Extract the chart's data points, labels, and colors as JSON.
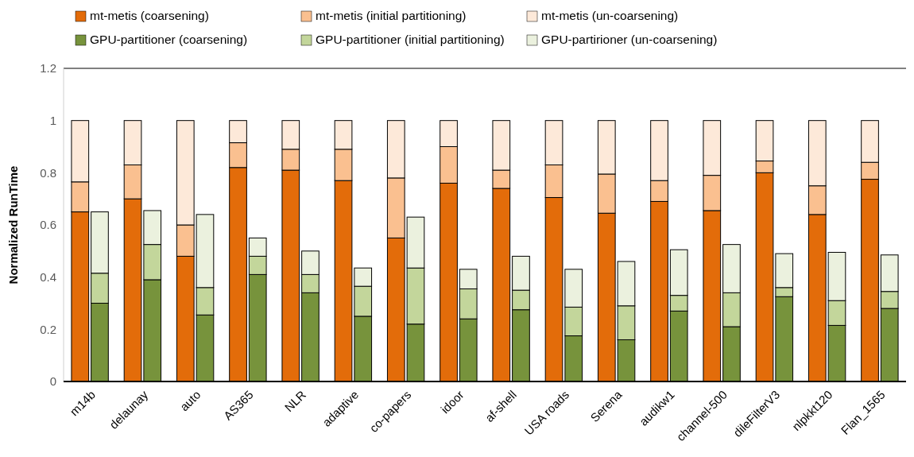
{
  "chart_data": {
    "type": "bar",
    "stacked": true,
    "ylabel": "Normalized RunTime",
    "ylim": [
      0,
      1.2
    ],
    "yticks": [
      0,
      0.2,
      0.4,
      0.6,
      0.8,
      1,
      1.2
    ],
    "grid": false,
    "legend": "top",
    "categories": [
      "m14b",
      null,
      "delaunay",
      null,
      "auto",
      null,
      "AS365",
      null,
      "NLR",
      null,
      "adaptive",
      null,
      "co-papers",
      null,
      "idoor",
      null,
      "af-shell",
      null,
      "USA roads",
      null,
      "Serena",
      null,
      "audikw1",
      null,
      "channel-500",
      null,
      "dileFilterV3",
      null,
      "nlpkkt120",
      null,
      "Flan_1565",
      null
    ],
    "series": [
      {
        "name": "mt-metis (coarsening)",
        "color": "#e36c0a",
        "values": [
          0.65,
          null,
          0.7,
          null,
          0.48,
          null,
          0.82,
          null,
          0.81,
          null,
          0.77,
          null,
          0.55,
          null,
          0.76,
          null,
          0.74,
          null,
          0.705,
          null,
          0.645,
          null,
          0.69,
          null,
          0.655,
          null,
          0.8,
          null,
          0.64,
          null,
          0.775,
          null
        ]
      },
      {
        "name": "mt-metis (initial partitioning)",
        "color": "#fac090",
        "values": [
          0.115,
          null,
          0.13,
          null,
          0.12,
          null,
          0.095,
          null,
          0.08,
          null,
          0.12,
          null,
          0.23,
          null,
          0.14,
          null,
          0.07,
          null,
          0.125,
          null,
          0.15,
          null,
          0.08,
          null,
          0.135,
          null,
          0.045,
          null,
          0.11,
          null,
          0.065,
          null
        ]
      },
      {
        "name": "mt-metis (un-coarsening)",
        "color": "#fde9d9",
        "values": [
          0.235,
          null,
          0.17,
          null,
          0.4,
          null,
          0.085,
          null,
          0.11,
          null,
          0.11,
          null,
          0.22,
          null,
          0.1,
          null,
          0.19,
          null,
          0.17,
          null,
          0.205,
          null,
          0.23,
          null,
          0.21,
          null,
          0.155,
          null,
          0.25,
          null,
          0.16,
          null
        ]
      },
      {
        "name": "GPU-partitioner (coarsening)",
        "color": "#77933c",
        "values": [
          null,
          0.3,
          null,
          0.39,
          null,
          0.255,
          null,
          0.41,
          null,
          0.34,
          null,
          0.25,
          null,
          0.22,
          null,
          0.24,
          null,
          0.275,
          null,
          0.175,
          null,
          0.16,
          null,
          0.27,
          null,
          0.21,
          null,
          0.325,
          null,
          0.215,
          null,
          0.28
        ]
      },
      {
        "name": "GPU-partitioner (initial partitioning)",
        "color": "#c3d69b",
        "values": [
          null,
          0.115,
          null,
          0.135,
          null,
          0.105,
          null,
          0.07,
          null,
          0.07,
          null,
          0.115,
          null,
          0.215,
          null,
          0.115,
          null,
          0.075,
          null,
          0.11,
          null,
          0.13,
          null,
          0.06,
          null,
          0.13,
          null,
          0.035,
          null,
          0.095,
          null,
          0.065
        ]
      },
      {
        "name": "GPU-partirioner (un-coarsening)",
        "color": "#ebf1de",
        "values": [
          null,
          0.235,
          null,
          0.13,
          null,
          0.28,
          null,
          0.07,
          null,
          0.09,
          null,
          0.07,
          null,
          0.195,
          null,
          0.075,
          null,
          0.13,
          null,
          0.145,
          null,
          0.17,
          null,
          0.175,
          null,
          0.185,
          null,
          0.13,
          null,
          0.185,
          null,
          0.14
        ]
      }
    ]
  }
}
